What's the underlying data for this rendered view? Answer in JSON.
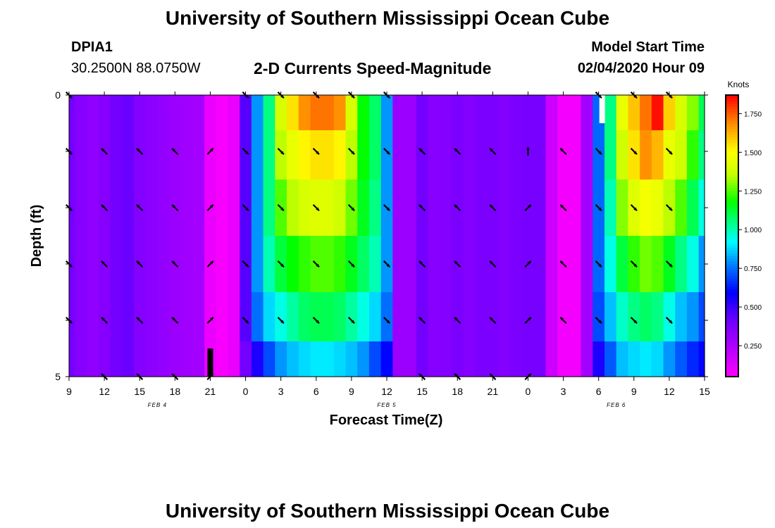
{
  "header": {
    "title_top": "University of Southern Mississippi Ocean Cube",
    "title_bottom": "University of Southern Mississippi Ocean Cube",
    "station_id": "DPIA1",
    "location": "30.2500N 88.0750W",
    "model_start_label": "Model Start Time",
    "model_start_value": "02/04/2020 Hour 09"
  },
  "chart_data": {
    "type": "heatmap",
    "title": "2-D Currents Speed-Magnitude",
    "xlabel": "Forecast Time(Z)",
    "ylabel": "Depth (ft)",
    "colorbar_label": "Knots",
    "colorbar_ticks": [
      "0.250",
      "0.500",
      "0.750",
      "1.000",
      "1.250",
      "1.500",
      "1.750"
    ],
    "colorbar_range": [
      0.05,
      1.87
    ],
    "x_ticks": [
      "9",
      "12",
      "15",
      "18",
      "21",
      "0",
      "3",
      "6",
      "9",
      "12",
      "15",
      "18",
      "21",
      "0",
      "3",
      "6",
      "9",
      "12",
      "15"
    ],
    "x_hours_range": [
      0,
      54
    ],
    "date_labels": [
      {
        "text": "FEB 4",
        "hour": 7.5
      },
      {
        "text": "FEB 5",
        "hour": 27
      },
      {
        "text": "FEB 6",
        "hour": 46.5
      }
    ],
    "y_ticks": [
      "0",
      "",
      "",
      "",
      "",
      "5"
    ],
    "depth_range": [
      0,
      5
    ],
    "depth_levels": [
      0.25,
      1.0,
      2.0,
      3.0,
      4.0,
      4.75
    ],
    "hours": [
      0,
      1,
      2,
      3,
      4,
      5,
      6,
      7,
      8,
      9,
      10,
      11,
      12,
      13,
      14,
      15,
      16,
      17,
      18,
      19,
      20,
      21,
      22,
      23,
      24,
      25,
      26,
      27,
      28,
      29,
      30,
      31,
      32,
      33,
      34,
      35,
      36,
      37,
      38,
      39,
      40,
      41,
      42,
      43,
      44,
      45,
      46,
      47,
      48,
      49,
      50,
      51,
      52,
      53,
      54
    ],
    "speed_profiles": [
      {
        "depth": 0.25,
        "values": [
          0.4,
          0.35,
          0.33,
          0.35,
          0.4,
          0.42,
          0.36,
          0.34,
          0.32,
          0.3,
          0.29,
          0.28,
          0.1,
          0.07,
          0.1,
          0.45,
          0.8,
          1.05,
          1.4,
          1.55,
          1.68,
          1.72,
          1.72,
          1.68,
          1.4,
          1.18,
          1.08,
          0.8,
          0.3,
          0.3,
          0.4,
          0.35,
          0.36,
          0.38,
          0.36,
          0.38,
          0.38,
          0.36,
          0.38,
          0.39,
          0.39,
          0.18,
          0.08,
          0.08,
          0.28,
          0.74,
          1.05,
          1.45,
          1.6,
          1.72,
          1.85,
          1.58,
          1.4,
          1.3,
          1.1
        ]
      },
      {
        "depth": 1.0,
        "values": [
          0.4,
          0.35,
          0.33,
          0.35,
          0.4,
          0.42,
          0.36,
          0.34,
          0.32,
          0.3,
          0.29,
          0.28,
          0.1,
          0.07,
          0.1,
          0.45,
          0.8,
          1.05,
          1.35,
          1.45,
          1.52,
          1.55,
          1.55,
          1.52,
          1.35,
          1.18,
          1.08,
          0.8,
          0.3,
          0.3,
          0.4,
          0.35,
          0.36,
          0.38,
          0.36,
          0.38,
          0.38,
          0.36,
          0.38,
          0.39,
          0.39,
          0.18,
          0.08,
          0.08,
          0.28,
          0.74,
          1.05,
          1.38,
          1.55,
          1.68,
          1.62,
          1.45,
          1.38,
          1.22,
          1.05
        ]
      },
      {
        "depth": 2.0,
        "values": [
          0.4,
          0.35,
          0.33,
          0.35,
          0.4,
          0.42,
          0.36,
          0.34,
          0.32,
          0.3,
          0.29,
          0.28,
          0.1,
          0.07,
          0.1,
          0.45,
          0.8,
          1.05,
          1.25,
          1.35,
          1.4,
          1.42,
          1.42,
          1.38,
          1.28,
          1.15,
          1.05,
          0.8,
          0.3,
          0.3,
          0.4,
          0.35,
          0.36,
          0.38,
          0.36,
          0.38,
          0.38,
          0.36,
          0.38,
          0.39,
          0.39,
          0.18,
          0.08,
          0.08,
          0.28,
          0.74,
          1.0,
          1.3,
          1.42,
          1.48,
          1.45,
          1.35,
          1.25,
          1.1,
          0.95
        ]
      },
      {
        "depth": 3.0,
        "values": [
          0.4,
          0.35,
          0.33,
          0.35,
          0.4,
          0.42,
          0.36,
          0.34,
          0.32,
          0.3,
          0.29,
          0.28,
          0.1,
          0.07,
          0.1,
          0.45,
          0.8,
          1.0,
          1.12,
          1.18,
          1.22,
          1.25,
          1.25,
          1.22,
          1.15,
          1.08,
          1.0,
          0.8,
          0.3,
          0.3,
          0.4,
          0.35,
          0.36,
          0.38,
          0.36,
          0.38,
          0.38,
          0.36,
          0.38,
          0.39,
          0.39,
          0.18,
          0.08,
          0.08,
          0.28,
          0.74,
          0.95,
          1.12,
          1.22,
          1.28,
          1.25,
          1.15,
          1.05,
          0.95,
          0.8
        ]
      },
      {
        "depth": 4.0,
        "values": [
          0.4,
          0.35,
          0.33,
          0.35,
          0.4,
          0.42,
          0.36,
          0.34,
          0.32,
          0.3,
          0.29,
          0.28,
          0.1,
          0.07,
          0.1,
          0.45,
          0.75,
          0.88,
          0.95,
          1.02,
          1.08,
          1.1,
          1.1,
          1.08,
          1.02,
          0.95,
          0.88,
          0.75,
          0.3,
          0.3,
          0.4,
          0.35,
          0.36,
          0.38,
          0.36,
          0.38,
          0.38,
          0.36,
          0.38,
          0.39,
          0.39,
          0.18,
          0.08,
          0.08,
          0.28,
          0.7,
          0.85,
          0.98,
          1.05,
          1.08,
          1.05,
          0.95,
          0.85,
          0.8,
          0.7
        ]
      },
      {
        "depth": 4.75,
        "values": [
          0.4,
          0.35,
          0.33,
          0.35,
          0.4,
          0.42,
          0.36,
          0.34,
          0.32,
          0.3,
          0.29,
          0.28,
          0.1,
          0.07,
          0.1,
          0.4,
          0.55,
          0.7,
          0.8,
          0.85,
          0.88,
          0.9,
          0.9,
          0.88,
          0.85,
          0.8,
          0.7,
          0.6,
          0.3,
          0.3,
          0.4,
          0.35,
          0.36,
          0.38,
          0.36,
          0.38,
          0.38,
          0.36,
          0.38,
          0.39,
          0.39,
          0.18,
          0.08,
          0.08,
          0.28,
          0.55,
          0.72,
          0.85,
          0.88,
          0.9,
          0.88,
          0.8,
          0.72,
          0.65,
          0.6
        ]
      }
    ],
    "arrow_hours": [
      0,
      3,
      6,
      9,
      12,
      15,
      18,
      21,
      24,
      27,
      30,
      33,
      36,
      39,
      42,
      45,
      48,
      51
    ],
    "arrow_rows": [
      {
        "depth": 0.0,
        "dirs": [
          "SE",
          null,
          null,
          null,
          null,
          "SE",
          "SE",
          "SE",
          "SE",
          "SE",
          null,
          null,
          null,
          null,
          null,
          "SE",
          "SE",
          "SE"
        ]
      },
      {
        "depth": 1.0,
        "dirs": [
          "SE",
          "NW",
          "NW",
          "NW",
          "NE",
          "SE",
          "SE",
          "SE",
          "SE",
          "SE",
          "NW",
          "NW",
          "NW",
          "N",
          "NW",
          "SE",
          "SE",
          "SE"
        ]
      },
      {
        "depth": 2.0,
        "dirs": [
          "SE",
          "NW",
          "NW",
          "NW",
          "NE",
          "SE",
          "SE",
          "SE",
          "SE",
          "SE",
          "NW",
          "NW",
          "NW",
          "NE",
          "NW",
          "SE",
          "SE",
          "SE"
        ]
      },
      {
        "depth": 3.0,
        "dirs": [
          "SE",
          "NW",
          "NW",
          "NW",
          "NE",
          "SE",
          "SE",
          "SE",
          "SE",
          "SE",
          "NW",
          "NW",
          "NW",
          "NE",
          "NW",
          "SE",
          "SE",
          "SE"
        ]
      },
      {
        "depth": 4.0,
        "dirs": [
          "SE",
          "NW",
          "NW",
          "NW",
          "NE",
          "SE",
          "SE",
          "SE",
          "SE",
          "SE",
          "NW",
          "NW",
          "NW",
          "NE",
          "NW",
          "SE",
          "SE",
          "SE"
        ]
      },
      {
        "depth": 5.0,
        "dirs": [
          null,
          "NW",
          "NW",
          "NW",
          "NE",
          null,
          null,
          null,
          null,
          null,
          "NW",
          "NW",
          "NW",
          "NE",
          null,
          null,
          null,
          null
        ]
      }
    ],
    "markers": [
      {
        "hour": 12,
        "depth_from": 4.5,
        "depth_to": 5.0,
        "color": "#000000"
      },
      {
        "hour": 45.3,
        "depth_from": 0.0,
        "depth_to": 0.5,
        "color": "#ffffff"
      }
    ]
  }
}
